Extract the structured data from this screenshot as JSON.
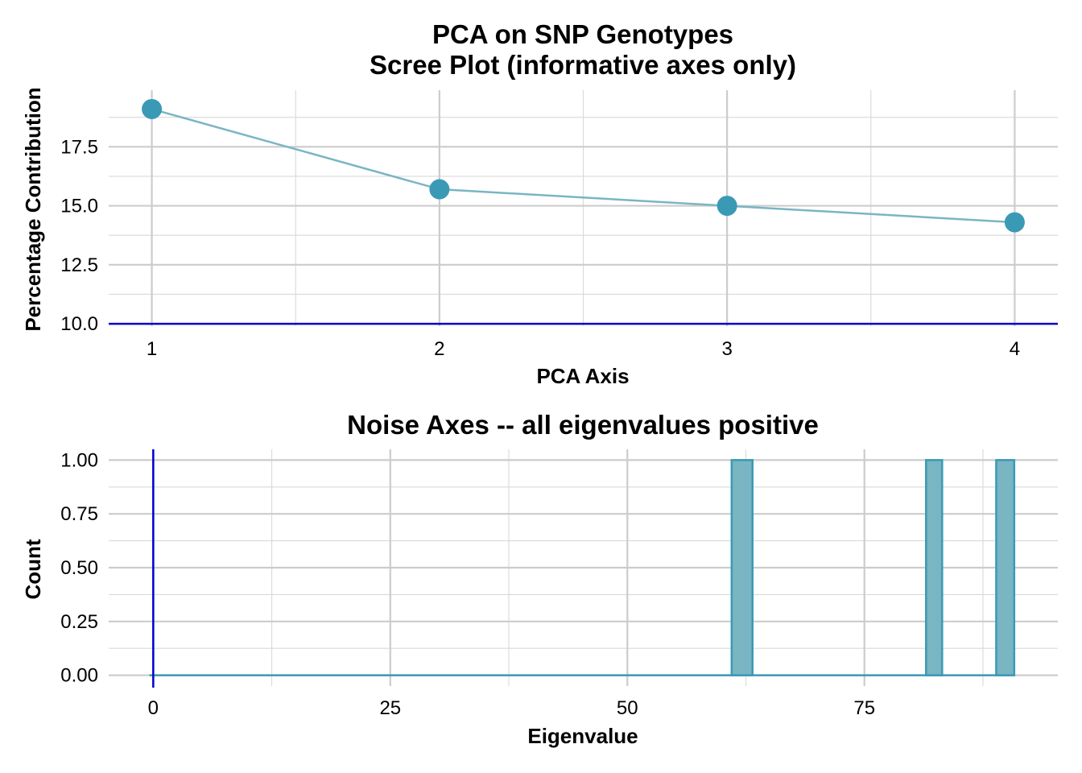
{
  "chart_data": [
    {
      "type": "line",
      "title": "PCA on SNP Genotypes",
      "subtitle": "Scree Plot (informative axes only)",
      "xlabel": "PCA Axis",
      "ylabel": "Percentage Contribution",
      "x": [
        1,
        2,
        3,
        4
      ],
      "values": [
        19.1,
        15.7,
        15.0,
        14.3
      ],
      "xticks": [
        "1",
        "2",
        "3",
        "4"
      ],
      "yticks": [
        "10.0",
        "12.5",
        "15.0",
        "17.5"
      ],
      "xlim": [
        0.85,
        4.15
      ],
      "ylim": [
        9.9,
        19.9
      ],
      "reference_line": {
        "orientation": "horizontal",
        "value": 10.0,
        "color": "#0000cc"
      },
      "line_color": "#7ab5c4",
      "point_color": "#3a9ab5",
      "grid": true,
      "legend": "none"
    },
    {
      "type": "bar",
      "subtype": "histogram",
      "title": "Noise Axes -- all eigenvalues positive",
      "xlabel": "Eigenvalue",
      "ylabel": "Count",
      "bins": [
        {
          "start": 61.0,
          "end": 63.2,
          "count": 1
        },
        {
          "start": 81.5,
          "end": 83.2,
          "count": 1
        },
        {
          "start": 88.9,
          "end": 90.8,
          "count": 1
        }
      ],
      "baseline_range": [
        -0.4,
        90.8
      ],
      "xticks": [
        "0",
        "25",
        "50",
        "75"
      ],
      "yticks": [
        "0.00",
        "0.25",
        "0.50",
        "0.75",
        "1.00"
      ],
      "xlim": [
        -4.7,
        95.4
      ],
      "ylim": [
        -0.05,
        1.05
      ],
      "reference_line": {
        "orientation": "vertical",
        "value": 0,
        "color": "#0000cc"
      },
      "bar_fill": "#7ab5c4",
      "bar_outline": "#3a9ab5",
      "grid": true,
      "legend": "none"
    }
  ]
}
